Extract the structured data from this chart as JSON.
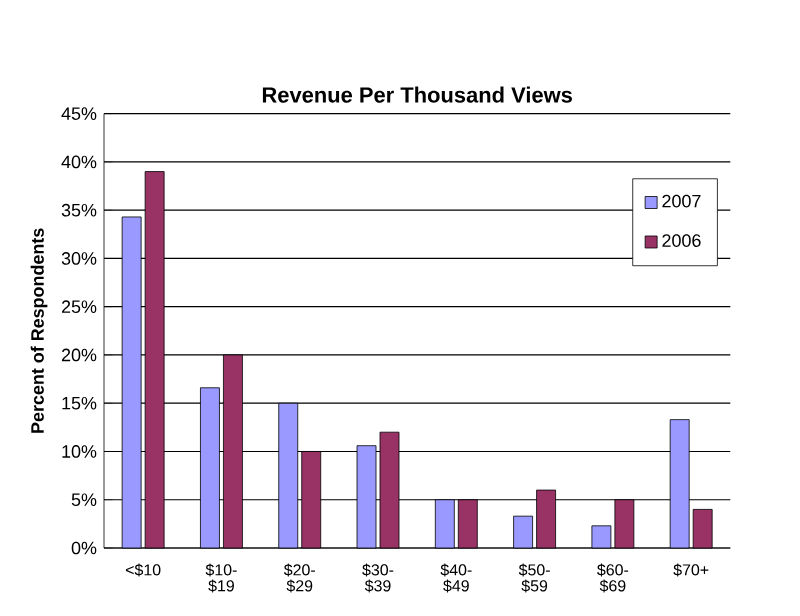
{
  "chart_data": {
    "type": "bar",
    "title": "Revenue Per Thousand Views",
    "ylabel": "Percent of Respondents",
    "categories": [
      "<$10",
      "$10- $19",
      "$20- $29",
      "$30- $39",
      "$40- $49",
      "$50- $59",
      "$60- $69",
      "$70+"
    ],
    "series": [
      {
        "name": "2007",
        "color": "#9999ff",
        "values": [
          34.3,
          16.6,
          15,
          10.6,
          5,
          3.3,
          2.3,
          13.3
        ]
      },
      {
        "name": "2006",
        "color": "#993366",
        "values": [
          39,
          20,
          10,
          12,
          5,
          6,
          5,
          4
        ]
      }
    ],
    "ylim": [
      0,
      45
    ],
    "yticks": [
      {
        "value": 0,
        "label": "0%"
      },
      {
        "value": 5,
        "label": "5%"
      },
      {
        "value": 10,
        "label": "10%"
      },
      {
        "value": 15,
        "label": "15%"
      },
      {
        "value": 20,
        "label": "20%"
      },
      {
        "value": 25,
        "label": "25%"
      },
      {
        "value": 30,
        "label": "30%"
      },
      {
        "value": 35,
        "label": "35%"
      },
      {
        "value": 40,
        "label": "40%"
      },
      {
        "value": 45,
        "label": "45%"
      }
    ],
    "grid": "y",
    "legend": "right"
  }
}
